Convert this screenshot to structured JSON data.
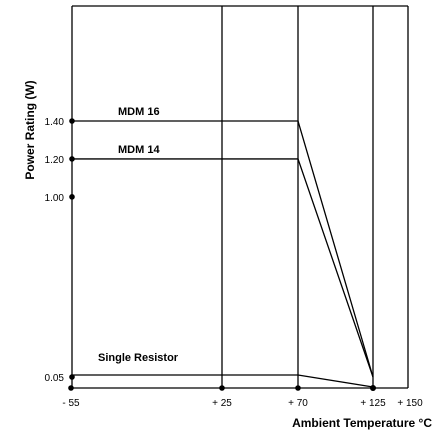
{
  "chart_data": {
    "type": "line",
    "title": "",
    "xlabel": "Ambient Temperature °C",
    "ylabel": "Power Rating (W)",
    "x_ticks": [
      -55,
      25,
      70,
      125,
      150
    ],
    "x_tick_labels": [
      "- 55",
      "+ 25",
      "+ 70",
      "+ 125",
      "+ 150"
    ],
    "y_ticks": [
      0.05,
      1.0,
      1.2,
      1.4
    ],
    "y_tick_labels": [
      "0.05",
      "1.00",
      "1.20",
      "1.40"
    ],
    "xlim": [
      -55,
      150
    ],
    "ylim": [
      0.05,
      1.4
    ],
    "grid": "vertical lines at -55, 25, 70, 125",
    "legend": "none (series labeled inline)",
    "series": [
      {
        "name": "MDM 16",
        "x": [
          -55,
          70,
          125
        ],
        "y": [
          1.4,
          1.4,
          0.05
        ]
      },
      {
        "name": "MDM 14",
        "x": [
          -55,
          70,
          125
        ],
        "y": [
          1.2,
          1.2,
          0.05
        ]
      },
      {
        "name": "Single Resistor",
        "x": [
          -55,
          70,
          125
        ],
        "y": [
          0.05,
          0.05,
          0.05
        ]
      }
    ],
    "line_color": "#000000"
  }
}
